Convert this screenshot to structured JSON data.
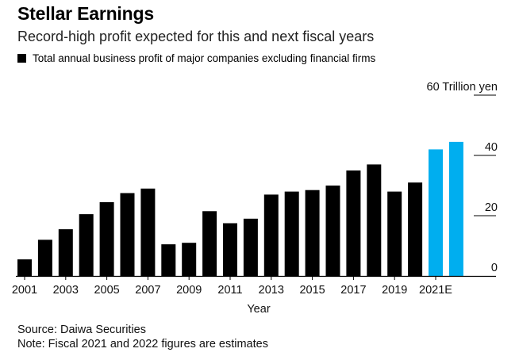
{
  "header": {
    "title": "Stellar Earnings",
    "subtitle": "Record-high profit expected for this and next fiscal years"
  },
  "chart_data": {
    "type": "bar",
    "title": "Stellar Earnings",
    "subtitle": "Record-high profit expected for this and next fiscal years",
    "legend": [
      {
        "label": "Total annual business profit of major companies excluding financial firms",
        "color": "#000000"
      }
    ],
    "xlabel": "Year",
    "ylabel": "60 Trillion yen",
    "ylim": [
      0,
      60
    ],
    "yticks": [
      0,
      20,
      40,
      60
    ],
    "ytick_labels": [
      "0",
      "20",
      "40",
      "60 Trillion yen"
    ],
    "categories": [
      "2001",
      "2002",
      "2003",
      "2004",
      "2005",
      "2006",
      "2007",
      "2008",
      "2009",
      "2010",
      "2011",
      "2012",
      "2013",
      "2014",
      "2015",
      "2016",
      "2017",
      "2018",
      "2019",
      "2020",
      "2021E",
      "2022E"
    ],
    "xtick_labels": [
      "2001",
      "2003",
      "2005",
      "2007",
      "2009",
      "2011",
      "2013",
      "2015",
      "2017",
      "2019",
      "2021E"
    ],
    "values": [
      5.5,
      12,
      15.5,
      20.5,
      24.5,
      27.5,
      29,
      10.5,
      11,
      21.5,
      17.5,
      19,
      27,
      28,
      28.5,
      30,
      35,
      37,
      28,
      31,
      42,
      44.5
    ],
    "colors": [
      "#000000",
      "#000000",
      "#000000",
      "#000000",
      "#000000",
      "#000000",
      "#000000",
      "#000000",
      "#000000",
      "#000000",
      "#000000",
      "#000000",
      "#000000",
      "#000000",
      "#000000",
      "#000000",
      "#000000",
      "#000000",
      "#000000",
      "#000000",
      "#00aeef",
      "#00aeef"
    ]
  },
  "footer": {
    "source": "Source: Daiwa Securities",
    "note": "Note: Fiscal 2021 and 2022 figures are estimates"
  }
}
